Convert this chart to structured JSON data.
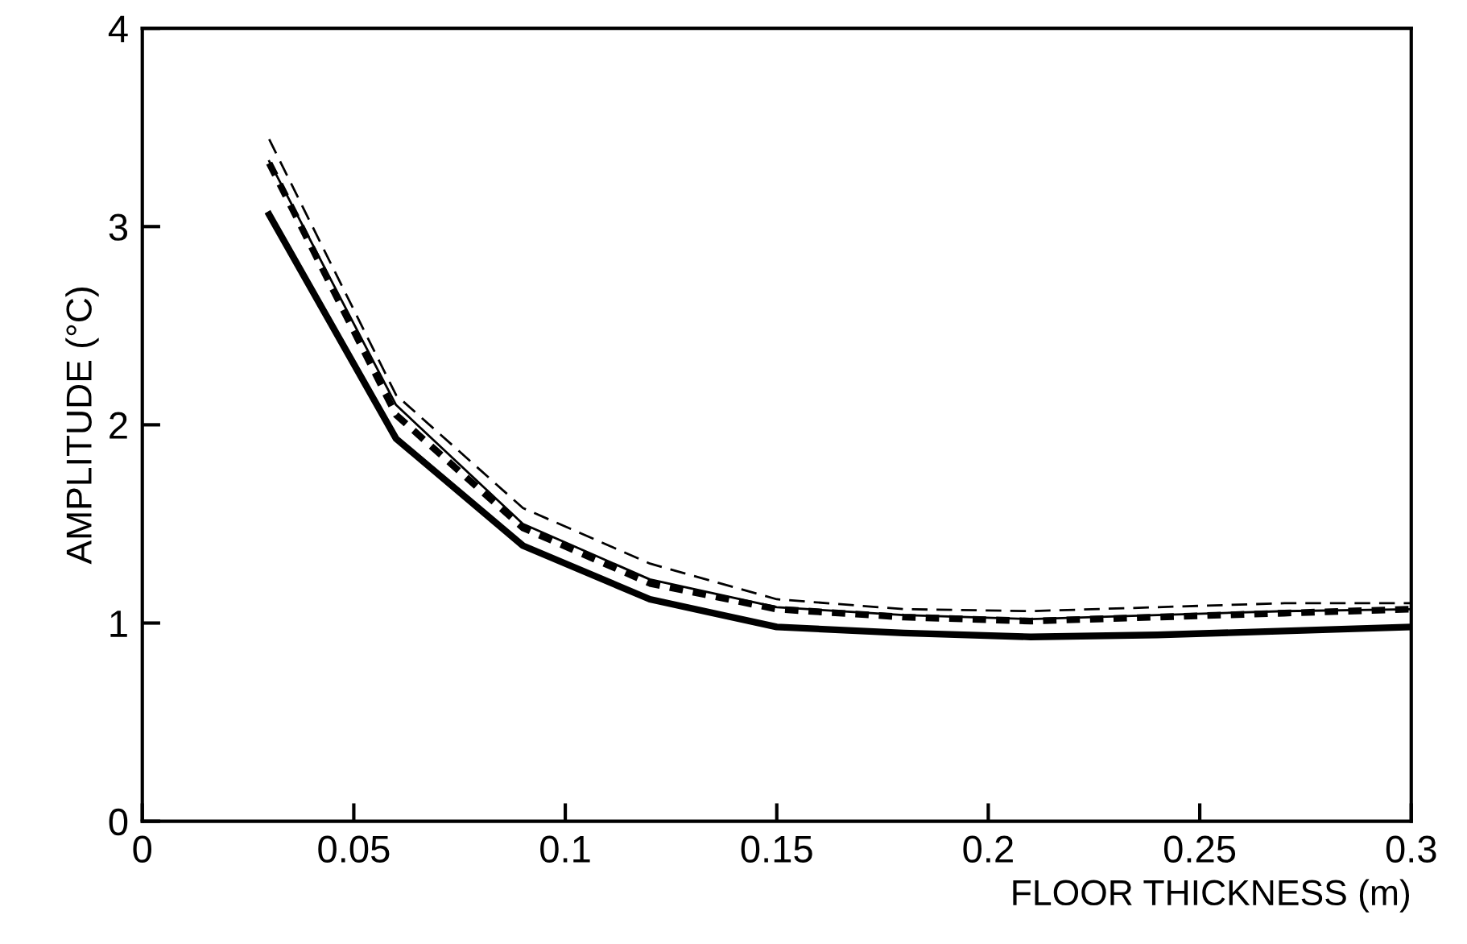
{
  "chart_data": {
    "type": "line",
    "xlabel": "FLOOR THICKNESS (m)",
    "ylabel": "AMPLITUDE (°C)",
    "x": [
      0.03,
      0.06,
      0.09,
      0.12,
      0.15,
      0.18,
      0.21,
      0.24,
      0.27,
      0.3
    ],
    "series": [
      {
        "color": "#000000",
        "line_style": "solid",
        "values": [
          3.06,
          1.93,
          1.39,
          1.12,
          0.98,
          0.95,
          0.93,
          0.94,
          0.96,
          0.98
        ]
      },
      {
        "color": "#000000",
        "line_style": "solid",
        "values": [
          3.33,
          2.1,
          1.5,
          1.22,
          1.08,
          1.04,
          1.02,
          1.04,
          1.06,
          1.07
        ]
      },
      {
        "color": "#000000",
        "line_style": "dotted",
        "values": [
          3.32,
          2.05,
          1.48,
          1.2,
          1.07,
          1.03,
          1.01,
          1.03,
          1.05,
          1.07
        ]
      },
      {
        "color": "#000000",
        "line_style": "dashed",
        "values": [
          3.44,
          2.15,
          1.58,
          1.3,
          1.12,
          1.07,
          1.06,
          1.08,
          1.1,
          1.1
        ]
      }
    ],
    "xlim": [
      0,
      0.3
    ],
    "xticks": [
      0,
      0.05,
      0.1,
      0.15,
      0.2,
      0.25,
      0.3
    ],
    "ylim": [
      0,
      4
    ],
    "yticks": [
      0,
      1,
      2,
      3,
      4
    ],
    "grid": false,
    "marker": "none"
  }
}
